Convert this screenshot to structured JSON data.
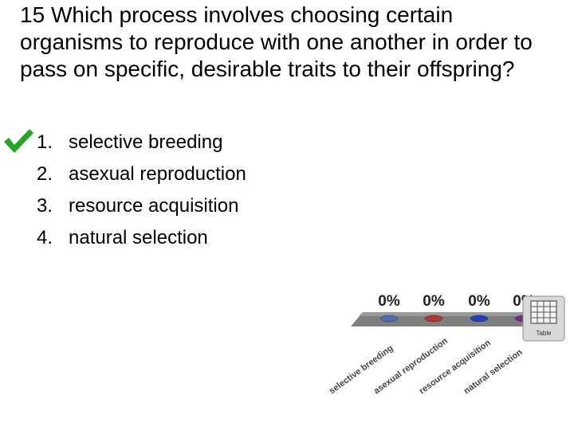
{
  "question": {
    "number": "15",
    "text": "Which process involves choosing certain organisms to reproduce with one another in order to pass on specific, desirable traits to their offspring?"
  },
  "answers": [
    {
      "num": "1.",
      "text": "selective breeding",
      "correct": true
    },
    {
      "num": "2.",
      "text": "asexual reproduction",
      "correct": false
    },
    {
      "num": "3.",
      "text": "resource acquisition",
      "correct": false
    },
    {
      "num": "4.",
      "text": "natural selection",
      "correct": false
    }
  ],
  "chart_data": {
    "type": "bar",
    "categories": [
      "selective breeding",
      "asexual reproduction",
      "resource acquisition",
      "natural selection"
    ],
    "values": [
      0,
      0,
      0,
      0
    ],
    "value_labels": [
      "0%",
      "0%",
      "0%",
      "0%"
    ],
    "colors": [
      "#4a6fb5",
      "#b8312f",
      "#1f3fbf",
      "#7a2a8a"
    ],
    "ylim": [
      0,
      100
    ]
  },
  "table_button": {
    "label": "Table",
    "icon": "table-grid-icon"
  },
  "colors": {
    "check": "#22a61f"
  }
}
